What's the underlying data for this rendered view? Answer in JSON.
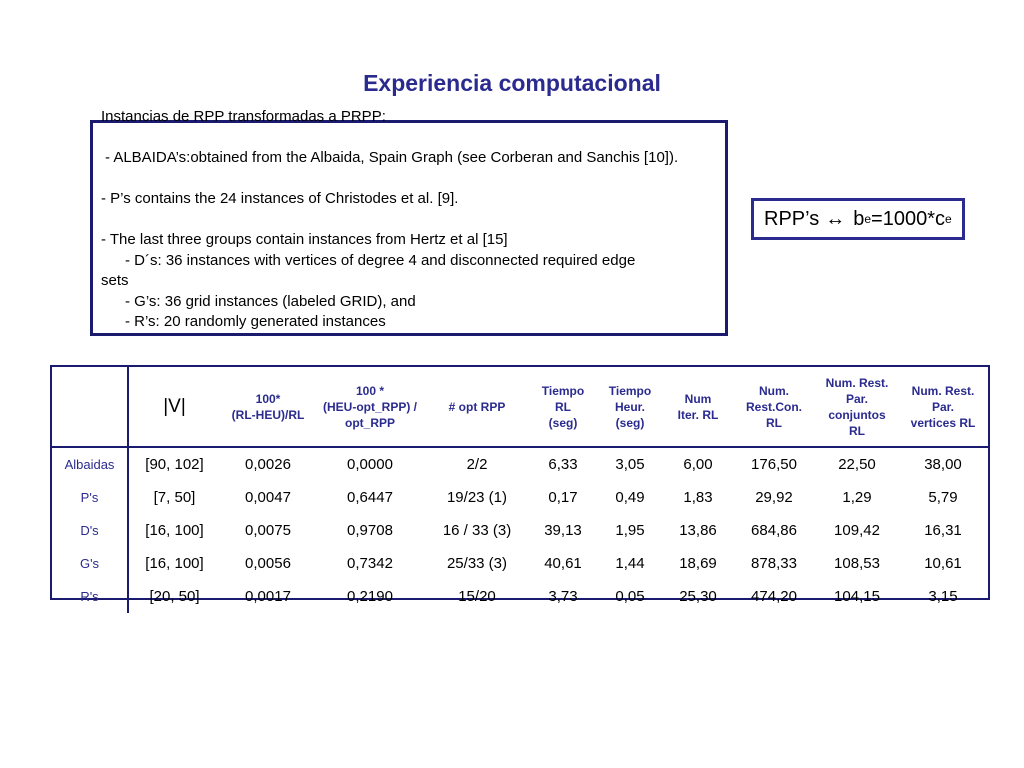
{
  "slide": {
    "title": "Experiencia computacional",
    "heading_line": "Instancias de RPP transformadas a PRPP:",
    "albaida_line": " - ALBAIDA’s:obtained from the Albaida, Spain Graph (see Corberan and Sanchis [10]).",
    "ps_line": "-  P’s contains the 24 instances of Christodes et al. [9].",
    "hertz_line": "-  The last three groups contain instances from Hertz et al [15]",
    "ds_line": "-   D´s: 36 instances with vertices of degree 4 and disconnected required edge",
    "ds_cont": "sets",
    "gs_line": "-   G’s: 36 grid instances (labeled GRID), and",
    "rs_line": "-   R’s:  20 randomly generated instances"
  },
  "rpp_box": {
    "left": "RPP’s ",
    "arrow": "↔",
    "b": "b",
    "b_sub": "e",
    "mid": "=1000*c",
    "c_sub": "e"
  },
  "table": {
    "headers": {
      "v": "|V|",
      "h1": "100*\n(RL-HEU)/RL",
      "h2": "100 *\n(HEU-opt_RPP) /\nopt_RPP",
      "h3": "# opt RPP",
      "h4": "Tiempo\nRL\n(seg)",
      "h5": "Tiempo\nHeur.\n(seg)",
      "h6": "Num\nIter. RL",
      "h7": "Num.\nRest.Con.\nRL",
      "h8": "Num. Rest.\nPar.\nconjuntos\nRL",
      "h9": "Num. Rest.\nPar.\nvertices RL"
    },
    "rows": [
      {
        "label": "Albaidas",
        "v": "[90, 102]",
        "c1": "0,0026",
        "c2": "0,0000",
        "c3": "2/2",
        "c4": "6,33",
        "c5": "3,05",
        "c6": "6,00",
        "c7": "176,50",
        "c8": "22,50",
        "c9": "38,00"
      },
      {
        "label": "P's",
        "v": "[7, 50]",
        "c1": "0,0047",
        "c2": "0,6447",
        "c3": "19/23 (1)",
        "c4": "0,17",
        "c5": "0,49",
        "c6": "1,83",
        "c7": "29,92",
        "c8": "1,29",
        "c9": "5,79"
      },
      {
        "label": "D's",
        "v": "[16, 100]",
        "c1": "0,0075",
        "c2": "0,9708",
        "c3": "16 / 33 (3)",
        "c4": "39,13",
        "c5": "1,95",
        "c6": "13,86",
        "c7": "684,86",
        "c8": "109,42",
        "c9": "16,31"
      },
      {
        "label": "G's",
        "v": "[16, 100]",
        "c1": "0,0056",
        "c2": "0,7342",
        "c3": "25/33 (3)",
        "c4": "40,61",
        "c5": "1,44",
        "c6": "18,69",
        "c7": "878,33",
        "c8": "108,53",
        "c9": "10,61"
      },
      {
        "label": "R's",
        "v": "[20, 50]",
        "c1": "0,0017",
        "c2": "0,2190",
        "c3": "15/20",
        "c4": "3,73",
        "c5": "0,05",
        "c6": "25,30",
        "c7": "474,20",
        "c8": "104,15",
        "c9": "3,15"
      }
    ]
  },
  "colors": {
    "title": "#2b2b8f",
    "border": "#1a1a6e",
    "header_text": "#2b2b8f"
  }
}
